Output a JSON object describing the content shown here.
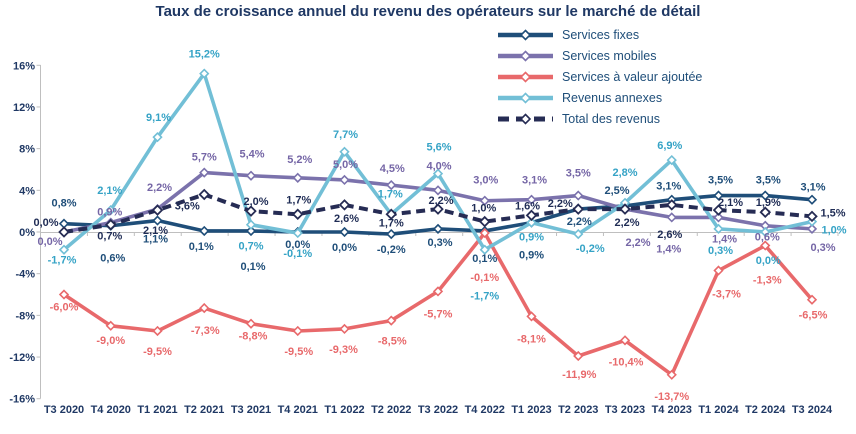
{
  "title": "Taux de croissance annuel du revenu des opérateurs sur le marché de détail",
  "legend": [
    {
      "label": "Services fixes",
      "color": "#1F4E79",
      "dash": false
    },
    {
      "label": "Services mobiles",
      "color": "#7B72AC",
      "dash": false
    },
    {
      "label": "Services à valeur ajoutée",
      "color": "#E8696B",
      "dash": false
    },
    {
      "label": "Revenus annexes",
      "color": "#72BFD6",
      "dash": false
    },
    {
      "label": "Total des revenus",
      "color": "#262C54",
      "dash": true
    }
  ],
  "chart_data": {
    "type": "line",
    "title": "Taux de croissance annuel du revenu des opérateurs sur le marché de détail",
    "categories": [
      "T3 2020",
      "T4 2020",
      "T1 2021",
      "T2 2021",
      "T3 2021",
      "T4 2021",
      "T1 2022",
      "T2 2022",
      "T3 2022",
      "T4 2022",
      "T1 2023",
      "T2 2023",
      "T3 2023",
      "T4 2023",
      "T1 2024",
      "T2 2024",
      "T3 2024"
    ],
    "series": [
      {
        "name": "Services fixes",
        "line_color": "#1F4E79",
        "label_color": "#1F4E79",
        "values": [
          0.8,
          0.6,
          1.1,
          0.1,
          0.1,
          0.0,
          0.0,
          -0.2,
          0.3,
          0.1,
          0.9,
          2.2,
          2.5,
          3.1,
          3.5,
          3.5,
          3.1
        ]
      },
      {
        "name": "Services mobiles",
        "line_color": "#7B72AC",
        "label_color": "#7566A6",
        "values": [
          0.0,
          0.9,
          2.2,
          5.7,
          5.4,
          5.2,
          5.0,
          4.5,
          4.0,
          3.0,
          3.1,
          3.5,
          2.2,
          1.4,
          1.4,
          0.6,
          0.3
        ]
      },
      {
        "name": "Services à valeur ajoutée",
        "line_color": "#E8696B",
        "label_color": "#E8696B",
        "values": [
          -6.0,
          -9.0,
          -9.5,
          -7.3,
          -8.8,
          -9.5,
          -9.3,
          -8.5,
          -5.7,
          -0.1,
          -8.1,
          -11.9,
          -10.4,
          -13.7,
          -3.7,
          -1.3,
          -6.5
        ]
      },
      {
        "name": "Revenus annexes",
        "line_color": "#72BFD6",
        "label_color": "#35A3C6",
        "values": [
          -1.7,
          2.1,
          9.1,
          15.2,
          0.7,
          -0.1,
          7.7,
          1.7,
          5.6,
          -1.7,
          0.9,
          -0.2,
          2.8,
          6.9,
          0.3,
          0.0,
          1.0
        ]
      },
      {
        "name": "Total des revenus",
        "line_color": "#262C54",
        "label_color": "#1F2C55",
        "dash": true,
        "values": [
          0.0,
          0.7,
          2.1,
          3.6,
          2.0,
          1.7,
          2.6,
          1.7,
          2.2,
          1.0,
          1.6,
          2.2,
          2.2,
          2.6,
          2.1,
          1.9,
          1.5
        ]
      }
    ],
    "xlabel": "",
    "ylabel": "",
    "y_ticks": [
      {
        "label": "16%",
        "value": 16
      },
      {
        "label": "12%",
        "value": 12
      },
      {
        "label": "8%",
        "value": 8
      },
      {
        "label": "4%",
        "value": 4
      },
      {
        "label": "0%",
        "value": 0
      },
      {
        "label": "-4%",
        "value": -4
      },
      {
        "label": "-8%",
        "value": -8
      },
      {
        "label": "-12%",
        "value": -12
      },
      {
        "label": "-16%",
        "value": -16
      }
    ],
    "ylim": [
      -16,
      16
    ],
    "grid": false,
    "legend_position": "top-right",
    "value_label_format": "french_percent_1dp",
    "axis_color": "#BFBFBF"
  }
}
